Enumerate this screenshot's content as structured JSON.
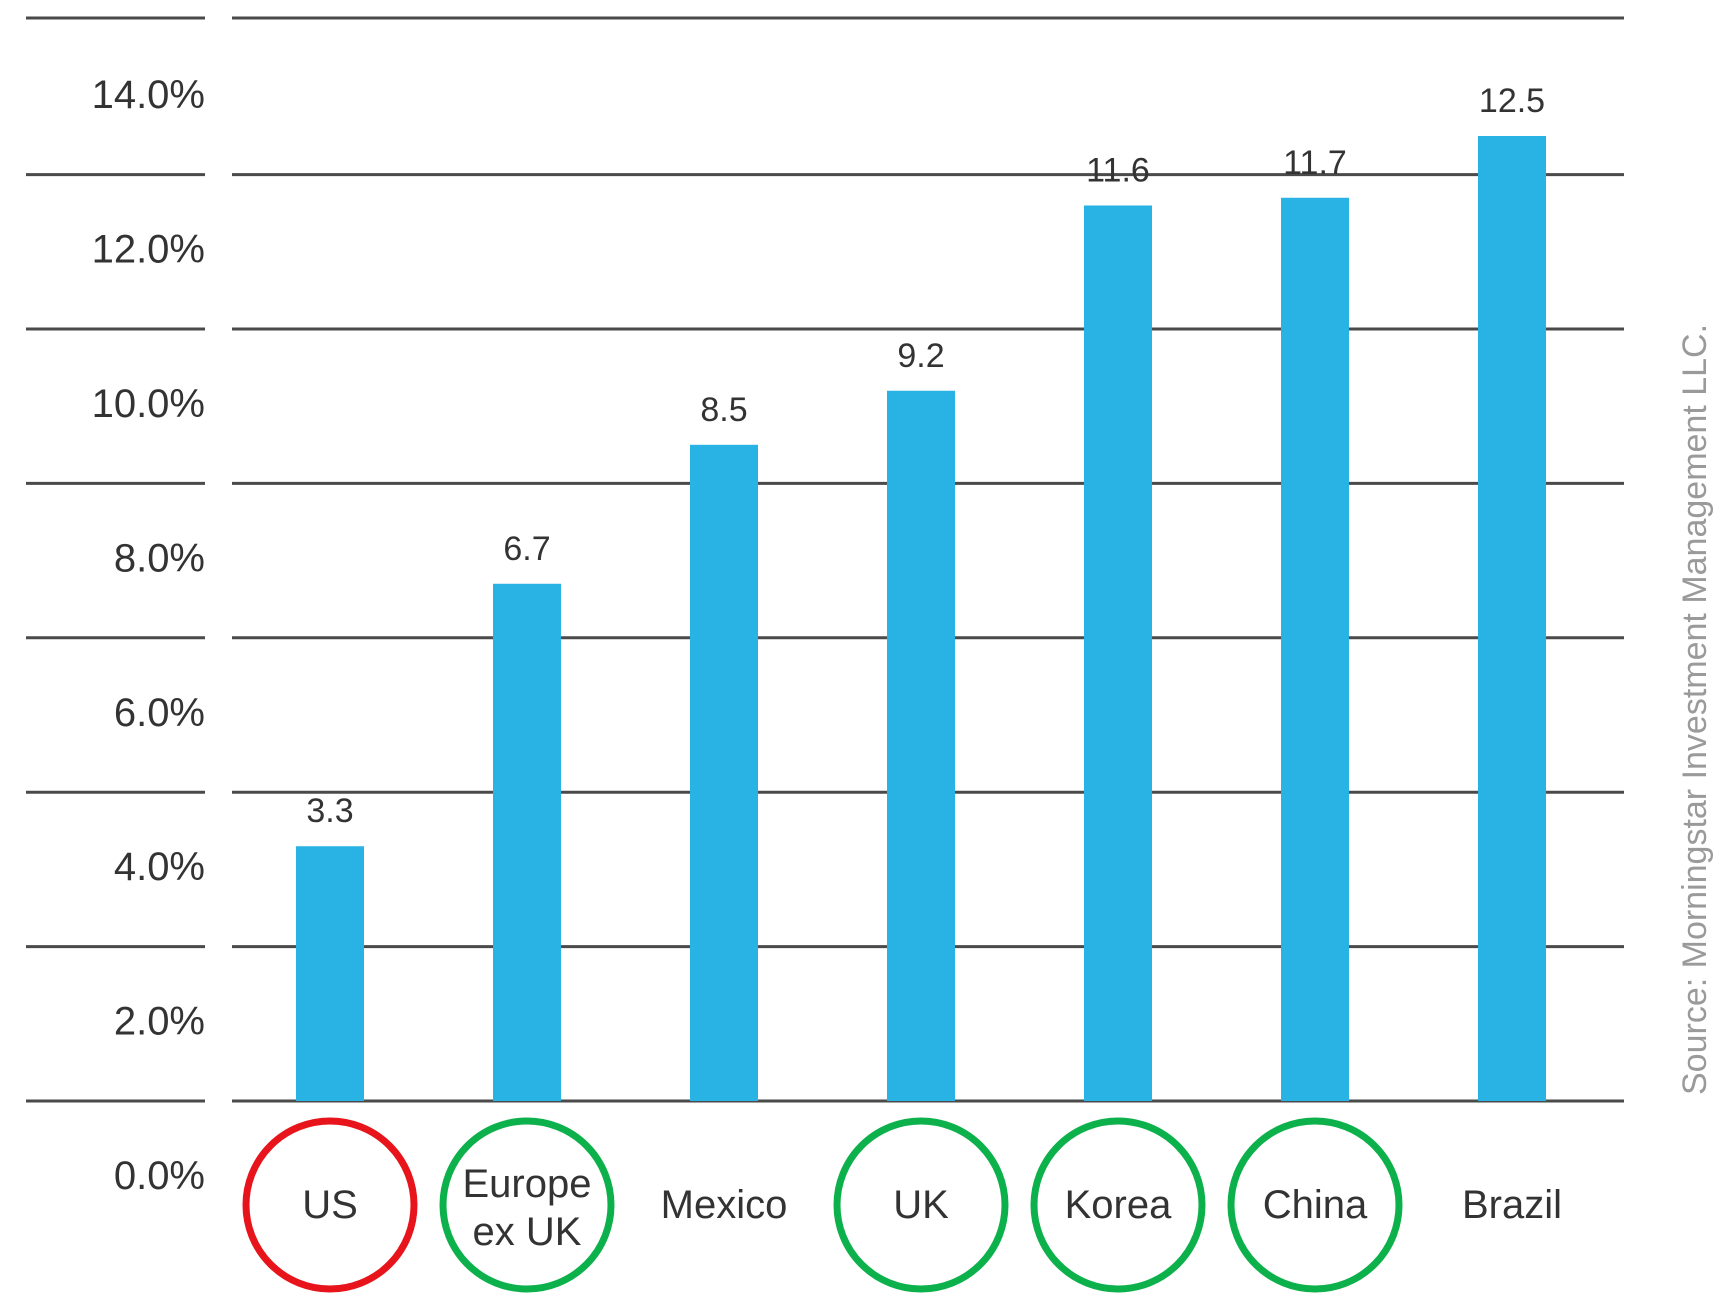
{
  "chart_data": {
    "type": "bar",
    "categories": [
      "US",
      "Europe ex UK",
      "Mexico",
      "UK",
      "Korea",
      "China",
      "Brazil"
    ],
    "category_lines": [
      [
        "US"
      ],
      [
        "Europe",
        "ex UK"
      ],
      [
        "Mexico"
      ],
      [
        "UK"
      ],
      [
        "Korea"
      ],
      [
        "China"
      ],
      [
        "Brazil"
      ]
    ],
    "values": [
      3.3,
      6.7,
      8.5,
      9.2,
      11.6,
      11.7,
      12.5
    ],
    "value_labels": [
      "3.3",
      "6.7",
      "8.5",
      "9.2",
      "11.6",
      "11.7",
      "12.5"
    ],
    "yticks": [
      "0.0%",
      "2.0%",
      "4.0%",
      "6.0%",
      "8.0%",
      "10.0%",
      "12.0%",
      "14.0%"
    ],
    "ylim": [
      0,
      14
    ],
    "grid": true,
    "highlights": [
      {
        "category": "US",
        "color": "#e8141b"
      },
      {
        "category": "Europe ex UK",
        "color": "#0db14b"
      },
      {
        "category": "UK",
        "color": "#0db14b"
      },
      {
        "category": "Korea",
        "color": "#0db14b"
      },
      {
        "category": "China",
        "color": "#0db14b"
      }
    ],
    "source": "Source: Morningstar Investment Management LLC."
  },
  "colors": {
    "bar": "#29b2e4",
    "grid": "#4a4a4a",
    "text": "#333333",
    "source_text": "#9a9a9a"
  }
}
